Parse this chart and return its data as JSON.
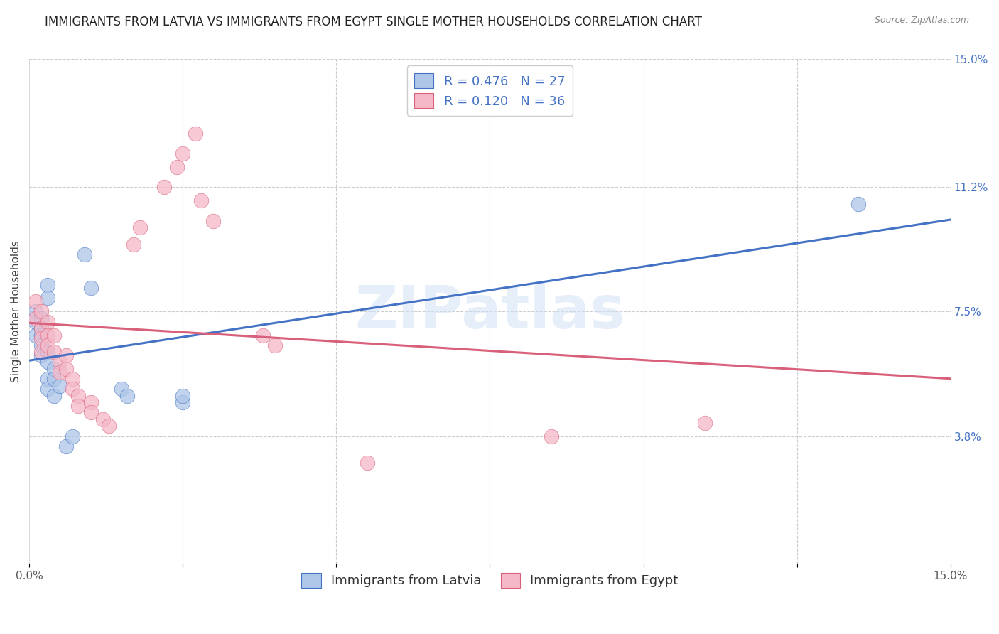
{
  "title": "IMMIGRANTS FROM LATVIA VS IMMIGRANTS FROM EGYPT SINGLE MOTHER HOUSEHOLDS CORRELATION CHART",
  "source": "Source: ZipAtlas.com",
  "ylabel": "Single Mother Households",
  "xlim": [
    0.0,
    0.15
  ],
  "ylim": [
    0.0,
    0.15
  ],
  "ytick_positions": [
    0.038,
    0.075,
    0.112,
    0.15
  ],
  "ytick_labels": [
    "3.8%",
    "7.5%",
    "11.2%",
    "15.0%"
  ],
  "xtick_positions": [
    0.0,
    0.025,
    0.05,
    0.075,
    0.1,
    0.125,
    0.15
  ],
  "xtick_labels_show": [
    "0.0%",
    "",
    "",
    "",
    "",
    "",
    "15.0%"
  ],
  "latvia_R": 0.476,
  "latvia_N": 27,
  "egypt_R": 0.12,
  "egypt_N": 36,
  "latvia_color": "#aec6e8",
  "egypt_color": "#f4b8c8",
  "latvia_line_color": "#4472c4",
  "egypt_line_color": "#d9607a",
  "watermark": "ZIPatlas",
  "latvia_points": [
    [
      0.001,
      0.075
    ],
    [
      0.001,
      0.072
    ],
    [
      0.001,
      0.068
    ],
    [
      0.002,
      0.073
    ],
    [
      0.002,
      0.07
    ],
    [
      0.002,
      0.068
    ],
    [
      0.002,
      0.065
    ],
    [
      0.002,
      0.062
    ],
    [
      0.003,
      0.083
    ],
    [
      0.003,
      0.079
    ],
    [
      0.003,
      0.063
    ],
    [
      0.003,
      0.06
    ],
    [
      0.003,
      0.055
    ],
    [
      0.003,
      0.052
    ],
    [
      0.004,
      0.058
    ],
    [
      0.004,
      0.055
    ],
    [
      0.004,
      0.05
    ],
    [
      0.005,
      0.053
    ],
    [
      0.006,
      0.035
    ],
    [
      0.007,
      0.038
    ],
    [
      0.009,
      0.092
    ],
    [
      0.01,
      0.082
    ],
    [
      0.015,
      0.052
    ],
    [
      0.016,
      0.05
    ],
    [
      0.025,
      0.048
    ],
    [
      0.025,
      0.05
    ],
    [
      0.135,
      0.107
    ]
  ],
  "egypt_points": [
    [
      0.001,
      0.078
    ],
    [
      0.001,
      0.073
    ],
    [
      0.002,
      0.075
    ],
    [
      0.002,
      0.07
    ],
    [
      0.002,
      0.067
    ],
    [
      0.002,
      0.063
    ],
    [
      0.003,
      0.072
    ],
    [
      0.003,
      0.068
    ],
    [
      0.003,
      0.065
    ],
    [
      0.004,
      0.068
    ],
    [
      0.004,
      0.063
    ],
    [
      0.005,
      0.06
    ],
    [
      0.005,
      0.057
    ],
    [
      0.006,
      0.062
    ],
    [
      0.006,
      0.058
    ],
    [
      0.007,
      0.055
    ],
    [
      0.007,
      0.052
    ],
    [
      0.008,
      0.05
    ],
    [
      0.008,
      0.047
    ],
    [
      0.01,
      0.048
    ],
    [
      0.01,
      0.045
    ],
    [
      0.012,
      0.043
    ],
    [
      0.013,
      0.041
    ],
    [
      0.017,
      0.095
    ],
    [
      0.018,
      0.1
    ],
    [
      0.022,
      0.112
    ],
    [
      0.024,
      0.118
    ],
    [
      0.025,
      0.122
    ],
    [
      0.027,
      0.128
    ],
    [
      0.028,
      0.108
    ],
    [
      0.03,
      0.102
    ],
    [
      0.038,
      0.068
    ],
    [
      0.04,
      0.065
    ],
    [
      0.055,
      0.03
    ],
    [
      0.085,
      0.038
    ],
    [
      0.11,
      0.042
    ]
  ],
  "background_color": "#ffffff",
  "grid_color": "#cccccc",
  "title_fontsize": 12,
  "axis_label_fontsize": 11,
  "tick_fontsize": 11,
  "legend_fontsize": 13
}
